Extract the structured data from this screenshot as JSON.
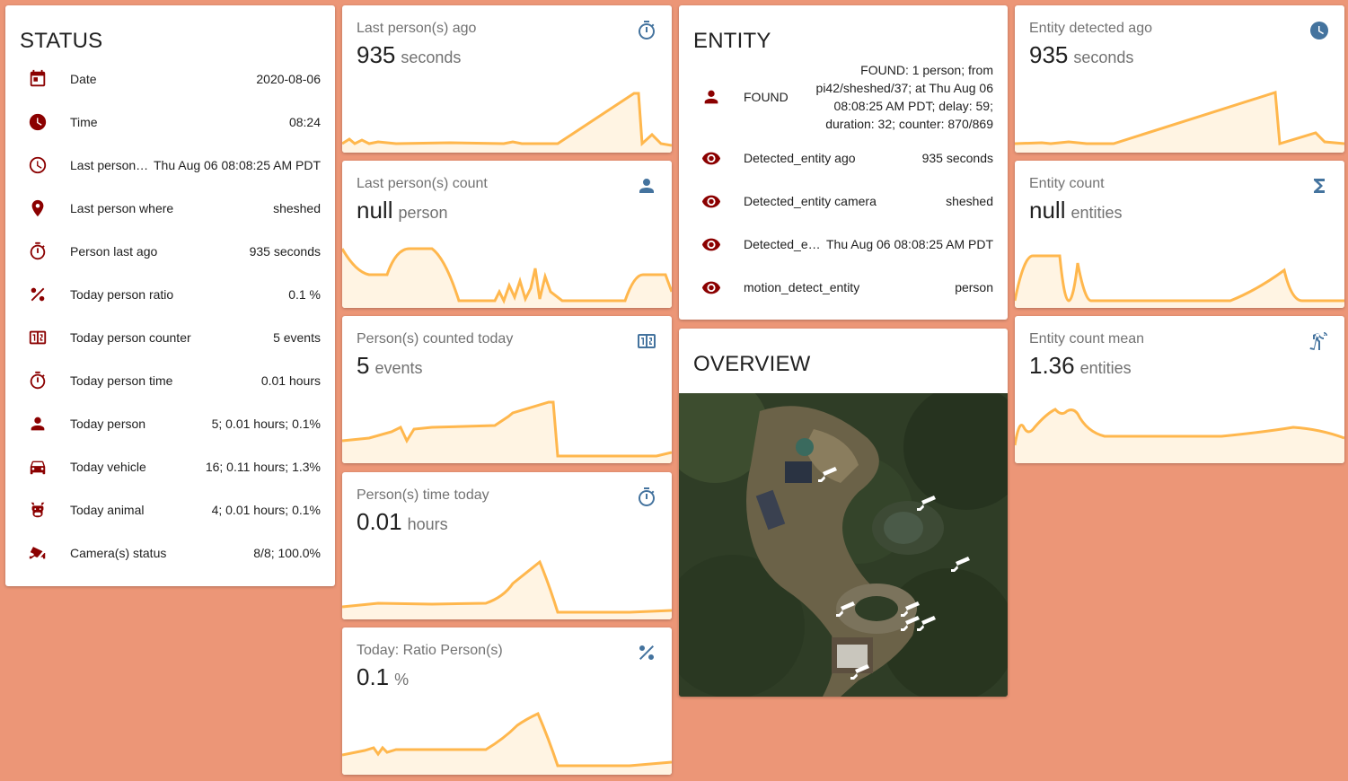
{
  "status": {
    "title": "STATUS",
    "rows": [
      {
        "icon": "calendar-icon",
        "name": "Date",
        "value": "2020-08-06"
      },
      {
        "icon": "clock-icon",
        "name": "Time",
        "value": "08:24"
      },
      {
        "icon": "clock-outline-icon",
        "name": "Last person …",
        "value": "Thu Aug 06 08:08:25 AM PDT"
      },
      {
        "icon": "map-marker-icon",
        "name": "Last person where",
        "value": "sheshed"
      },
      {
        "icon": "timer-icon",
        "name": "Person last ago",
        "value": "935 seconds"
      },
      {
        "icon": "percent-icon",
        "name": "Today person ratio",
        "value": "0.1 %"
      },
      {
        "icon": "counter-icon",
        "name": "Today person counter",
        "value": "5 events"
      },
      {
        "icon": "timer-icon",
        "name": "Today person time",
        "value": "0.01 hours"
      },
      {
        "icon": "account-icon",
        "name": "Today person",
        "value": "5; 0.01 hours; 0.1%"
      },
      {
        "icon": "car-icon",
        "name": "Today vehicle",
        "value": "16; 0.11 hours; 1.3%"
      },
      {
        "icon": "cow-icon",
        "name": "Today animal",
        "value": "4; 0.01 hours; 0.1%"
      },
      {
        "icon": "cctv-icon",
        "name": "Camera(s) status",
        "value": "8/8; 100.0%"
      }
    ]
  },
  "sensors_col2": [
    {
      "name": "Last person(s) ago",
      "value": "935",
      "unit": "seconds",
      "icon": "timer-icon"
    },
    {
      "name": "Last person(s) count",
      "value": "null",
      "unit": "person",
      "icon": "account-icon"
    },
    {
      "name": "Person(s) counted today",
      "value": "5",
      "unit": "events",
      "icon": "counter-icon"
    },
    {
      "name": "Person(s) time today",
      "value": "0.01",
      "unit": "hours",
      "icon": "timer-icon"
    },
    {
      "name": "Today: Ratio Person(s)",
      "value": "0.1",
      "unit": "%",
      "icon": "percent-icon"
    }
  ],
  "entity": {
    "title": "ENTITY",
    "found": {
      "icon": "account-icon",
      "name": "FOUND",
      "value": "FOUND: 1 person; from pi42/sheshed/37; at Thu Aug 06 08:08:25 AM PDT; delay: 59; duration: 32; counter: 870/869"
    },
    "rows": [
      {
        "icon": "eye-icon",
        "name": "Detected_entity ago",
        "value": "935 seconds"
      },
      {
        "icon": "eye-icon",
        "name": "Detected_entity camera",
        "value": "sheshed"
      },
      {
        "icon": "eye-icon",
        "name": "Detected_e…",
        "value": "Thu Aug 06 08:08:25 AM PDT"
      },
      {
        "icon": "eye-icon",
        "name": "motion_detect_entity",
        "value": "person"
      }
    ]
  },
  "overview": {
    "title": "OVERVIEW"
  },
  "sensors_col4": [
    {
      "name": "Entity detected ago",
      "value": "935",
      "unit": "seconds",
      "icon": "clock-icon"
    },
    {
      "name": "Entity count",
      "value": "null",
      "unit": "entities",
      "icon": "sigma-icon"
    },
    {
      "name": "Entity count mean",
      "value": "1.36",
      "unit": "entities",
      "icon": "motion-sensor-icon"
    }
  ],
  "colors": {
    "background": "#ec9677",
    "entity_icon": "#8b0000",
    "sensor_icon": "#44739e",
    "graph_line": "#ffb74d",
    "graph_fill": "#fff4e3"
  }
}
